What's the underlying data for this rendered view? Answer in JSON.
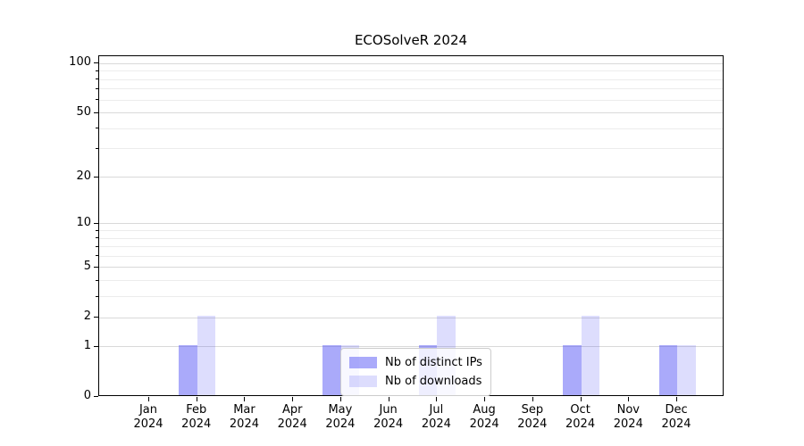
{
  "figure": {
    "background": "#ffffff"
  },
  "colors": {
    "grid_major": "#d9d9d9",
    "grid_minor": "#ececec",
    "axis": "#000000",
    "legend_border": "#cccccc",
    "legend_bg": "rgba(255,255,255,0.8)"
  },
  "chart_data": {
    "type": "bar",
    "title": "ECOSolveR 2024",
    "xlabel": "",
    "ylabel": "",
    "yscale": "log1p",
    "ylim": [
      0,
      111
    ],
    "y_major_ticks": [
      0,
      1,
      2,
      5,
      10,
      20,
      50,
      100
    ],
    "y_minor_ticks": [
      3,
      4,
      6,
      7,
      8,
      9,
      30,
      40,
      60,
      70,
      80,
      90
    ],
    "grid": true,
    "legend_position": "inside lower-center",
    "categories": [
      {
        "month": "Jan",
        "year": "2024"
      },
      {
        "month": "Feb",
        "year": "2024"
      },
      {
        "month": "Mar",
        "year": "2024"
      },
      {
        "month": "Apr",
        "year": "2024"
      },
      {
        "month": "May",
        "year": "2024"
      },
      {
        "month": "Jun",
        "year": "2024"
      },
      {
        "month": "Jul",
        "year": "2024"
      },
      {
        "month": "Aug",
        "year": "2024"
      },
      {
        "month": "Sep",
        "year": "2024"
      },
      {
        "month": "Oct",
        "year": "2024"
      },
      {
        "month": "Nov",
        "year": "2024"
      },
      {
        "month": "Dec",
        "year": "2024"
      }
    ],
    "series": [
      {
        "name": "Nb of distinct IPs",
        "color": "rgba(85,85,245,0.5)",
        "values": [
          0,
          1,
          0,
          0,
          1,
          0,
          1,
          0,
          0,
          1,
          0,
          1
        ]
      },
      {
        "name": "Nb of downloads",
        "color": "rgba(85,85,245,0.2)",
        "values": [
          0,
          2,
          0,
          0,
          1,
          0,
          2,
          0,
          0,
          2,
          0,
          1
        ]
      }
    ]
  }
}
